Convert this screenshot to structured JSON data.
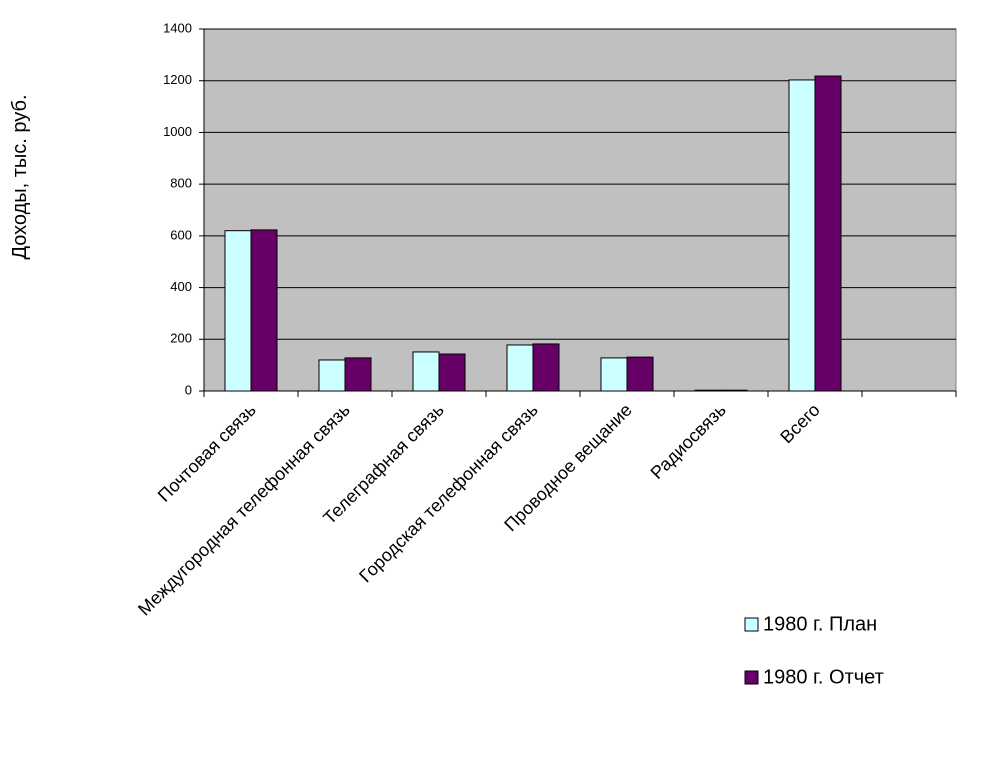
{
  "chart_data": {
    "type": "bar",
    "y_label": "Доходы, тыс. руб.",
    "categories": [
      "Почтовая связь",
      "Междугородная телефонная связь",
      "Телеграфная связь",
      "Городская телефонная связь",
      "Проводное вещание",
      "Радиосвязь",
      "Всего",
      null
    ],
    "series": [
      {
        "name": "1980 г. План",
        "color": "#ccffff",
        "values": [
          620,
          120,
          151,
          178,
          128,
          3,
          1203,
          null
        ]
      },
      {
        "name": "1980 г. Отчет",
        "color": "#660066",
        "values": [
          623,
          128,
          143,
          182,
          131,
          3,
          1218,
          null
        ]
      }
    ],
    "ylim": [
      0,
      1400
    ],
    "yticks": [
      0,
      200,
      400,
      600,
      800,
      1000,
      1200,
      1400
    ],
    "grid": true,
    "plot_background": "#c0c0c0",
    "legend": "right"
  }
}
